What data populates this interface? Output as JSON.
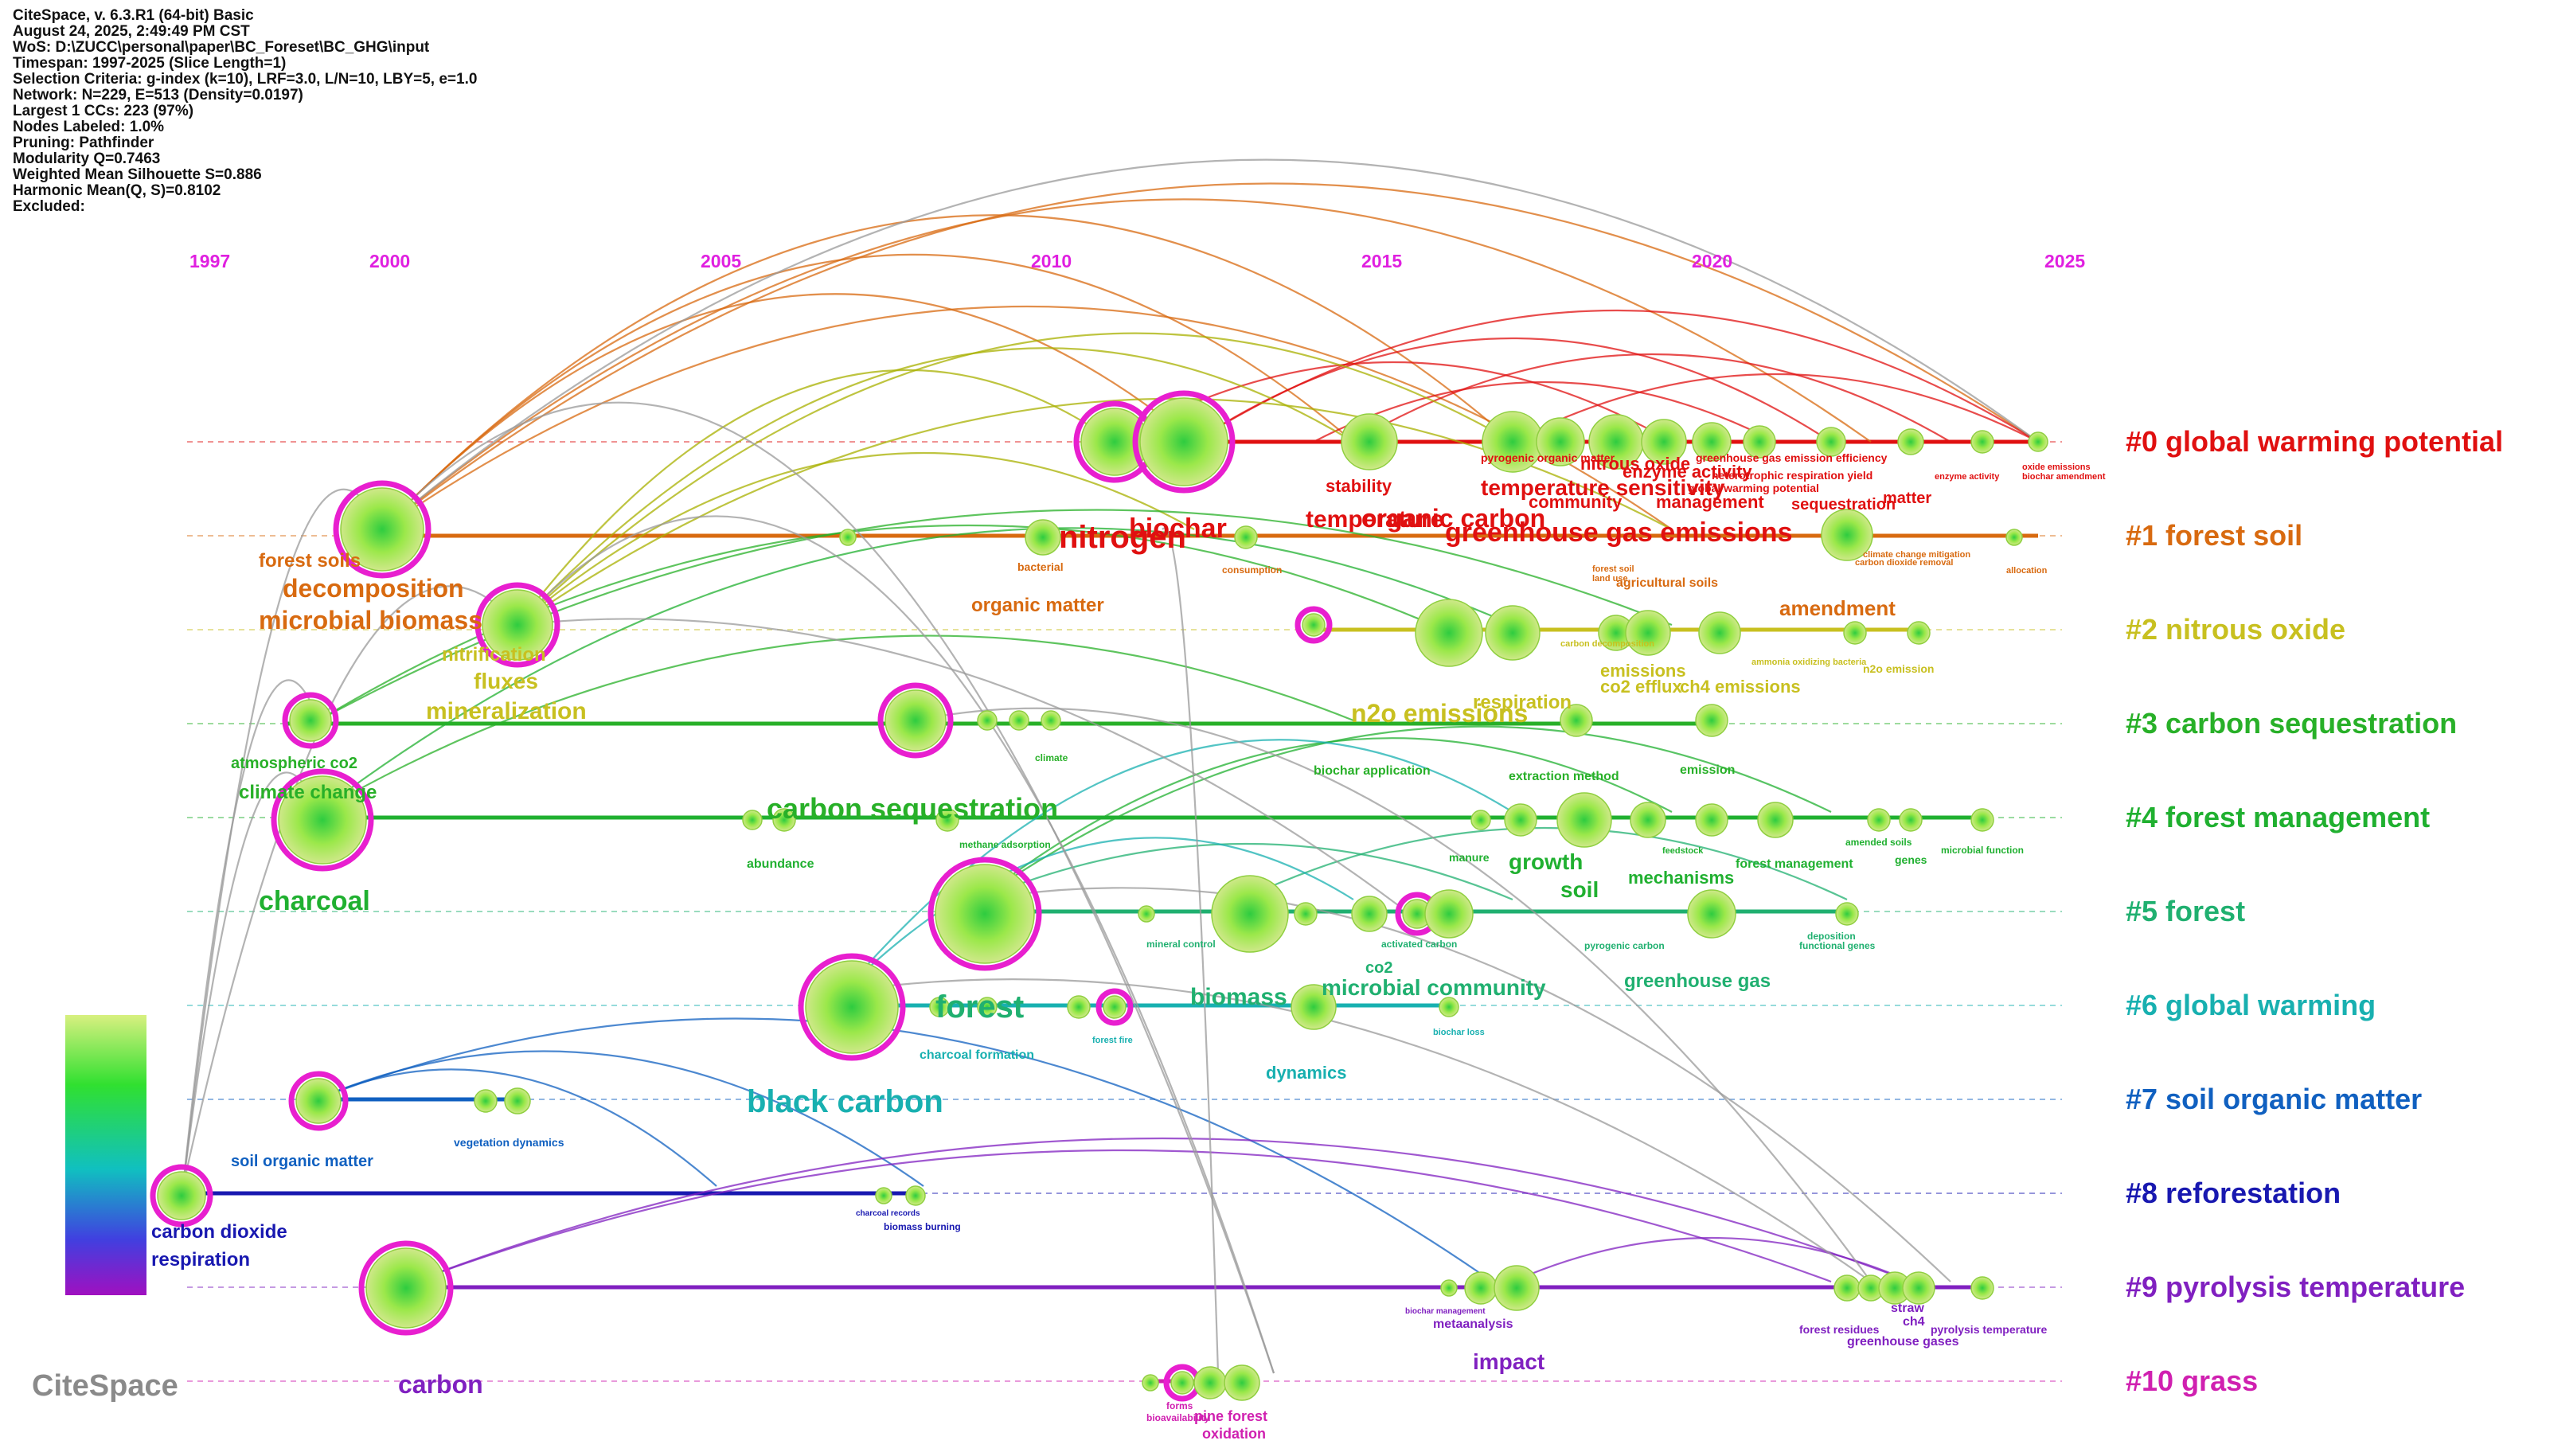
{
  "info_lines": [
    "CiteSpace, v. 6.3.R1 (64-bit) Basic",
    "August 24, 2025, 2:49:49 PM CST",
    "WoS: D:\\ZUCC\\personal\\paper\\BC_Foreset\\BC_GHG\\input",
    "Timespan: 1997-2025 (Slice Length=1)",
    "Selection Criteria: g-index (k=10), LRF=3.0, L/N=10, LBY=5, e=1.0",
    "Network: N=229, E=513 (Density=0.0197)",
    "Largest 1 CCs: 223 (97%)",
    "Nodes Labeled: 1.0%",
    "Pruning: Pathfinder",
    "Modularity Q=0.7463",
    "Weighted Mean Silhouette S=0.886",
    "Harmonic Mean(Q, S)=0.8102",
    "Excluded:"
  ],
  "years": [
    "1997",
    "2000",
    "2005",
    "2010",
    "2015",
    "2020",
    "2025"
  ],
  "logo": "CiteSpace",
  "clusters": [
    {
      "label": "#0 global warming potential",
      "color": "#e01010"
    },
    {
      "label": "#1 forest soil",
      "color": "#d86a10"
    },
    {
      "label": "#2 nitrous oxide",
      "color": "#c8c020"
    },
    {
      "label": "#3 carbon sequestration",
      "color": "#28b028"
    },
    {
      "label": "#4 forest management",
      "color": "#20b030"
    },
    {
      "label": "#5 forest",
      "color": "#20b070"
    },
    {
      "label": "#6 global warming",
      "color": "#18b0b0"
    },
    {
      "label": "#7 soil organic matter",
      "color": "#1060c0"
    },
    {
      "label": "#8 reforestation",
      "color": "#1818b0"
    },
    {
      "label": "#9 pyrolysis temperature",
      "color": "#8020c0"
    },
    {
      "label": "#10 grass",
      "color": "#d020b0"
    }
  ],
  "keywords": [
    {
      "t": "nitrogen",
      "c": "#e01010",
      "s": 40
    },
    {
      "t": "biochar",
      "c": "#e01010",
      "s": 34
    },
    {
      "t": "stability",
      "c": "#e01010",
      "s": 22
    },
    {
      "t": "temperature",
      "c": "#e01010",
      "s": 30
    },
    {
      "t": "organic carbon",
      "c": "#e01010",
      "s": 32
    },
    {
      "t": "temperature sensitivity",
      "c": "#e01010",
      "s": 28
    },
    {
      "t": "nitrous oxide",
      "c": "#e01010",
      "s": 22
    },
    {
      "t": "enzyme activity",
      "c": "#e01010",
      "s": 22
    },
    {
      "t": "community",
      "c": "#e01010",
      "s": 22
    },
    {
      "t": "management",
      "c": "#e01010",
      "s": 22
    },
    {
      "t": "greenhouse gas emission efficiency",
      "c": "#e01010",
      "s": 14
    },
    {
      "t": "heterotrophic respiration yield",
      "c": "#e01010",
      "s": 14
    },
    {
      "t": "global warming potential",
      "c": "#e01010",
      "s": 14
    },
    {
      "t": "sequestration",
      "c": "#e01010",
      "s": 20
    },
    {
      "t": "matter",
      "c": "#e01010",
      "s": 20
    },
    {
      "t": "pyrogenic organic matter",
      "c": "#e01010",
      "s": 14
    },
    {
      "t": "oxide emissions",
      "c": "#e01010",
      "s": 11
    },
    {
      "t": "biochar amendment",
      "c": "#e01010",
      "s": 11
    },
    {
      "t": "enzyme activity",
      "c": "#e01010",
      "s": 11
    },
    {
      "t": "greenhouse gas emissions",
      "c": "#e01010",
      "s": 34
    },
    {
      "t": "forest soils",
      "c": "#d86a10",
      "s": 24
    },
    {
      "t": "decomposition",
      "c": "#d86a10",
      "s": 32
    },
    {
      "t": "microbial biomass",
      "c": "#d86a10",
      "s": 32
    },
    {
      "t": "bacterial",
      "c": "#d86a10",
      "s": 14
    },
    {
      "t": "consumption",
      "c": "#d86a10",
      "s": 12
    },
    {
      "t": "organic matter",
      "c": "#d86a10",
      "s": 24
    },
    {
      "t": "agricultural soils",
      "c": "#d86a10",
      "s": 16
    },
    {
      "t": "amendment",
      "c": "#d86a10",
      "s": 26
    },
    {
      "t": "allocation",
      "c": "#d86a10",
      "s": 11
    },
    {
      "t": "climate change mitigation",
      "c": "#d86a10",
      "s": 11
    },
    {
      "t": "carbon dioxide removal",
      "c": "#d86a10",
      "s": 11
    },
    {
      "t": "forest soil",
      "c": "#d86a10",
      "s": 11
    },
    {
      "t": "land use",
      "c": "#d86a10",
      "s": 11
    },
    {
      "t": "nitrification",
      "c": "#c8c020",
      "s": 24
    },
    {
      "t": "fluxes",
      "c": "#c8c020",
      "s": 28
    },
    {
      "t": "mineralization",
      "c": "#c8c020",
      "s": 30
    },
    {
      "t": "n2o emissions",
      "c": "#c8c020",
      "s": 32
    },
    {
      "t": "respiration",
      "c": "#c8c020",
      "s": 24
    },
    {
      "t": "emissions",
      "c": "#c8c020",
      "s": 22
    },
    {
      "t": "co2 efflux",
      "c": "#c8c020",
      "s": 22
    },
    {
      "t": "ch4 emissions",
      "c": "#c8c020",
      "s": 22
    },
    {
      "t": "n2o emission",
      "c": "#c8c020",
      "s": 14
    },
    {
      "t": "ammonia oxidizing bacteria",
      "c": "#c8c020",
      "s": 11
    },
    {
      "t": "carbon decomposition",
      "c": "#c8c020",
      "s": 11
    },
    {
      "t": "atmospheric co2",
      "c": "#28b028",
      "s": 20
    },
    {
      "t": "climate change",
      "c": "#28b028",
      "s": 24
    },
    {
      "t": "carbon sequestration",
      "c": "#28b028",
      "s": 36
    },
    {
      "t": "biochar application",
      "c": "#28b028",
      "s": 16
    },
    {
      "t": "extraction method",
      "c": "#28b028",
      "s": 16
    },
    {
      "t": "emission",
      "c": "#28b028",
      "s": 16
    },
    {
      "t": "climate",
      "c": "#28b028",
      "s": 12
    },
    {
      "t": "charcoal",
      "c": "#20b030",
      "s": 34
    },
    {
      "t": "abundance",
      "c": "#20b030",
      "s": 16
    },
    {
      "t": "methane adsorption",
      "c": "#20b030",
      "s": 12
    },
    {
      "t": "growth",
      "c": "#20b030",
      "s": 28
    },
    {
      "t": "soil",
      "c": "#20b030",
      "s": 28
    },
    {
      "t": "mechanisms",
      "c": "#20b030",
      "s": 22
    },
    {
      "t": "forest management",
      "c": "#20b030",
      "s": 16
    },
    {
      "t": "amended soils",
      "c": "#20b030",
      "s": 12
    },
    {
      "t": "genes",
      "c": "#20b030",
      "s": 14
    },
    {
      "t": "microbial function",
      "c": "#20b030",
      "s": 12
    },
    {
      "t": "manure",
      "c": "#20b030",
      "s": 14
    },
    {
      "t": "feedstock",
      "c": "#20b030",
      "s": 11
    },
    {
      "t": "forest",
      "c": "#20b070",
      "s": 40
    },
    {
      "t": "biomass",
      "c": "#20b070",
      "s": 30
    },
    {
      "t": "co2",
      "c": "#20b070",
      "s": 20
    },
    {
      "t": "microbial community",
      "c": "#20b070",
      "s": 28
    },
    {
      "t": "greenhouse gas",
      "c": "#20b070",
      "s": 24
    },
    {
      "t": "mineral control",
      "c": "#20b070",
      "s": 12
    },
    {
      "t": "activated carbon",
      "c": "#20b070",
      "s": 12
    },
    {
      "t": "pyrogenic carbon",
      "c": "#20b070",
      "s": 12
    },
    {
      "t": "deposition",
      "c": "#20b070",
      "s": 12
    },
    {
      "t": "functional genes",
      "c": "#20b070",
      "s": 12
    },
    {
      "t": "charcoal formation",
      "c": "#18b0b0",
      "s": 16
    },
    {
      "t": "dynamics",
      "c": "#18b0b0",
      "s": 22
    },
    {
      "t": "black carbon",
      "c": "#18b0b0",
      "s": 40
    },
    {
      "t": "forest fire",
      "c": "#18b0b0",
      "s": 11
    },
    {
      "t": "biochar loss",
      "c": "#18b0b0",
      "s": 11
    },
    {
      "t": "soil organic matter",
      "c": "#1060c0",
      "s": 20
    },
    {
      "t": "vegetation dynamics",
      "c": "#1060c0",
      "s": 14
    },
    {
      "t": "carbon dioxide",
      "c": "#1818b0",
      "s": 24
    },
    {
      "t": "respiration",
      "c": "#1818b0",
      "s": 24
    },
    {
      "t": "biomass burning",
      "c": "#1818b0",
      "s": 12
    },
    {
      "t": "charcoal records",
      "c": "#1818b0",
      "s": 10
    },
    {
      "t": "carbon",
      "c": "#8020c0",
      "s": 32
    },
    {
      "t": "impact",
      "c": "#8020c0",
      "s": 28
    },
    {
      "t": "metaanalysis",
      "c": "#8020c0",
      "s": 16
    },
    {
      "t": "straw",
      "c": "#8020c0",
      "s": 16
    },
    {
      "t": "ch4",
      "c": "#8020c0",
      "s": 16
    },
    {
      "t": "forest residues",
      "c": "#8020c0",
      "s": 14
    },
    {
      "t": "greenhouse gases",
      "c": "#8020c0",
      "s": 16
    },
    {
      "t": "pyrolysis temperature",
      "c": "#8020c0",
      "s": 14
    },
    {
      "t": "biochar management",
      "c": "#8020c0",
      "s": 10
    },
    {
      "t": "pine forest",
      "c": "#d020b0",
      "s": 18
    },
    {
      "t": "oxidation",
      "c": "#d020b0",
      "s": 18
    },
    {
      "t": "forms",
      "c": "#d020b0",
      "s": 12
    },
    {
      "t": "bioavailability",
      "c": "#d020b0",
      "s": 12
    }
  ]
}
